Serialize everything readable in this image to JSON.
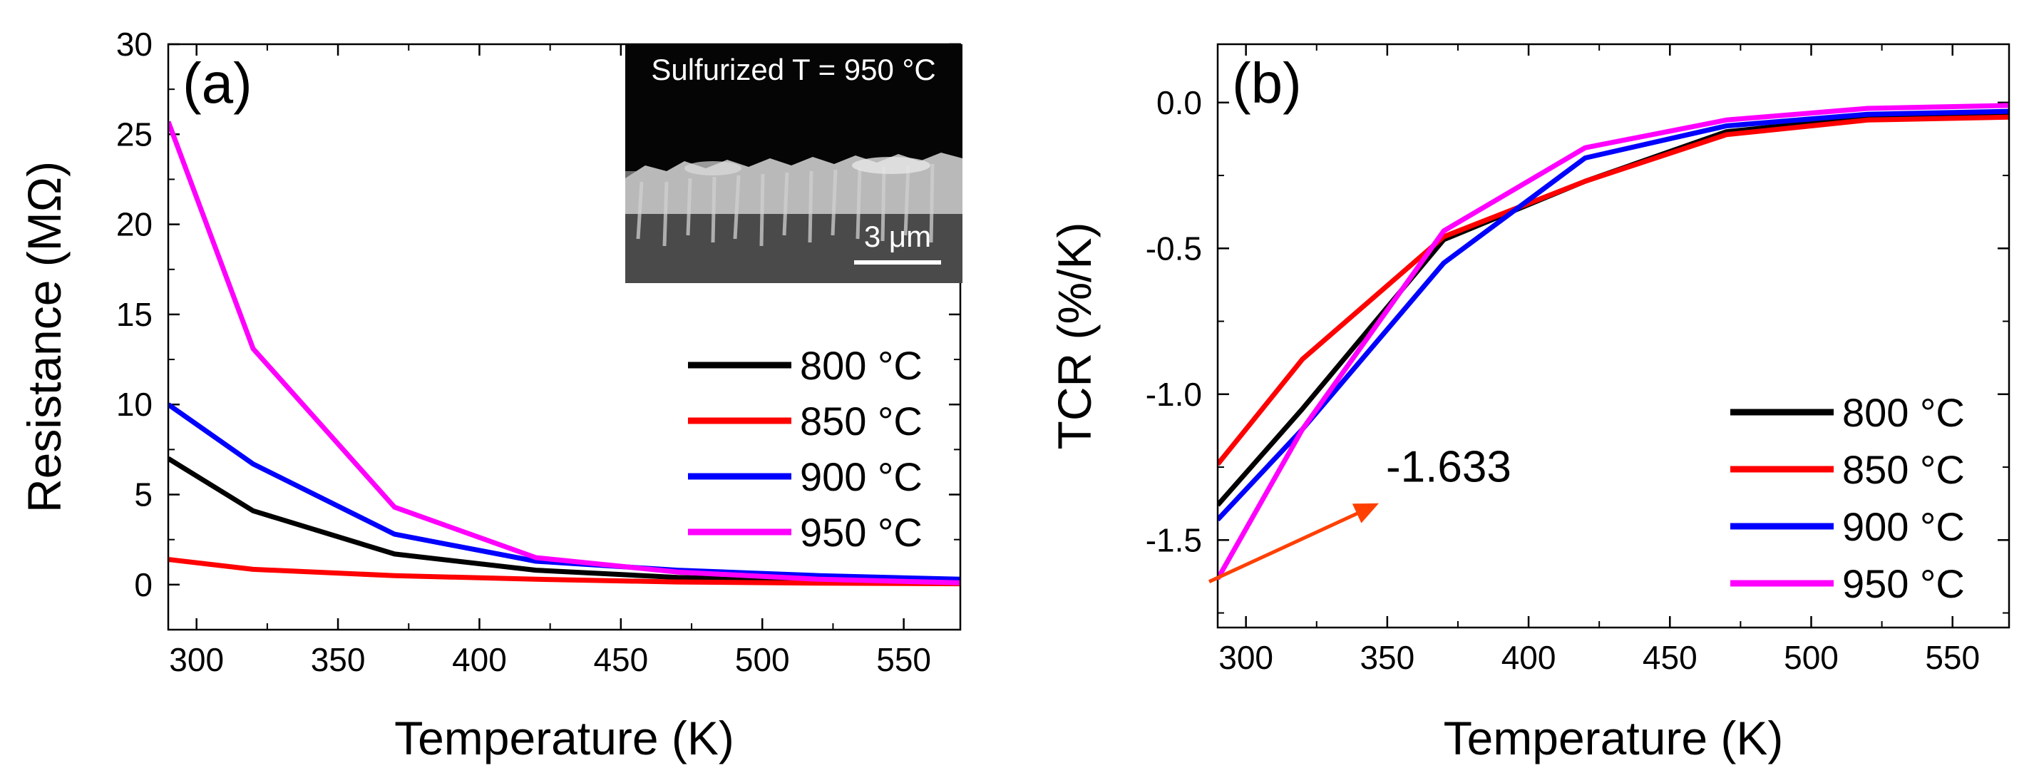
{
  "chart_data": [
    {
      "type": "line",
      "panel_label": "(a)",
      "xlabel": "Temperature (K)",
      "ylabel": "Resistance (MΩ)",
      "xlim": [
        290,
        570
      ],
      "ylim": [
        -2.5,
        30
      ],
      "xticks": [
        300,
        350,
        400,
        450,
        500,
        550
      ],
      "yticks": [
        0,
        5,
        10,
        15,
        20,
        25,
        30
      ],
      "x": [
        290,
        320,
        370,
        420,
        470,
        520,
        570
      ],
      "series": [
        {
          "name": "800 °C",
          "color": "#000000",
          "values": [
            7.0,
            4.1,
            1.7,
            0.8,
            0.4,
            0.2,
            0.1
          ]
        },
        {
          "name": "850 °C",
          "color": "#ff0000",
          "values": [
            1.4,
            0.85,
            0.5,
            0.3,
            0.15,
            0.08,
            0.05
          ]
        },
        {
          "name": "900 °C",
          "color": "#0000ff",
          "values": [
            10.0,
            6.7,
            2.8,
            1.3,
            0.8,
            0.5,
            0.3
          ]
        },
        {
          "name": "950 °C",
          "color": "#ff00ff",
          "values": [
            25.7,
            13.1,
            4.3,
            1.5,
            0.7,
            0.3,
            0.1
          ]
        }
      ],
      "legend_position": "right",
      "inset": {
        "caption": "Sulfurized T = 950 °C",
        "scalebar_label": "3 μm"
      }
    },
    {
      "type": "line",
      "panel_label": "(b)",
      "xlabel": "Temperature (K)",
      "ylabel": "TCR (%/K)",
      "xlim": [
        290,
        570
      ],
      "ylim": [
        -1.8,
        0.2
      ],
      "xticks": [
        300,
        350,
        400,
        450,
        500,
        550
      ],
      "yticks": [
        0.0,
        -0.5,
        -1.0,
        -1.5
      ],
      "ytick_labels": [
        "0.0",
        "-0.5",
        "-1.0",
        "-1.5"
      ],
      "x": [
        290,
        320,
        370,
        420,
        470,
        520,
        570
      ],
      "series": [
        {
          "name": "800 °C",
          "color": "#000000",
          "values": [
            -1.38,
            -1.05,
            -0.47,
            -0.27,
            -0.1,
            -0.05,
            -0.04
          ]
        },
        {
          "name": "850 °C",
          "color": "#ff0000",
          "values": [
            -1.24,
            -0.88,
            -0.46,
            -0.27,
            -0.11,
            -0.06,
            -0.05
          ]
        },
        {
          "name": "900 °C",
          "color": "#0000ff",
          "values": [
            -1.43,
            -1.12,
            -0.55,
            -0.19,
            -0.08,
            -0.04,
            -0.03
          ]
        },
        {
          "name": "950 °C",
          "color": "#ff00ff",
          "values": [
            -1.633,
            -1.12,
            -0.44,
            -0.155,
            -0.06,
            -0.02,
            -0.01
          ]
        }
      ],
      "legend_position": "bottom-right",
      "annotation": {
        "text": "-1.633",
        "color": "#ff4000"
      }
    }
  ]
}
